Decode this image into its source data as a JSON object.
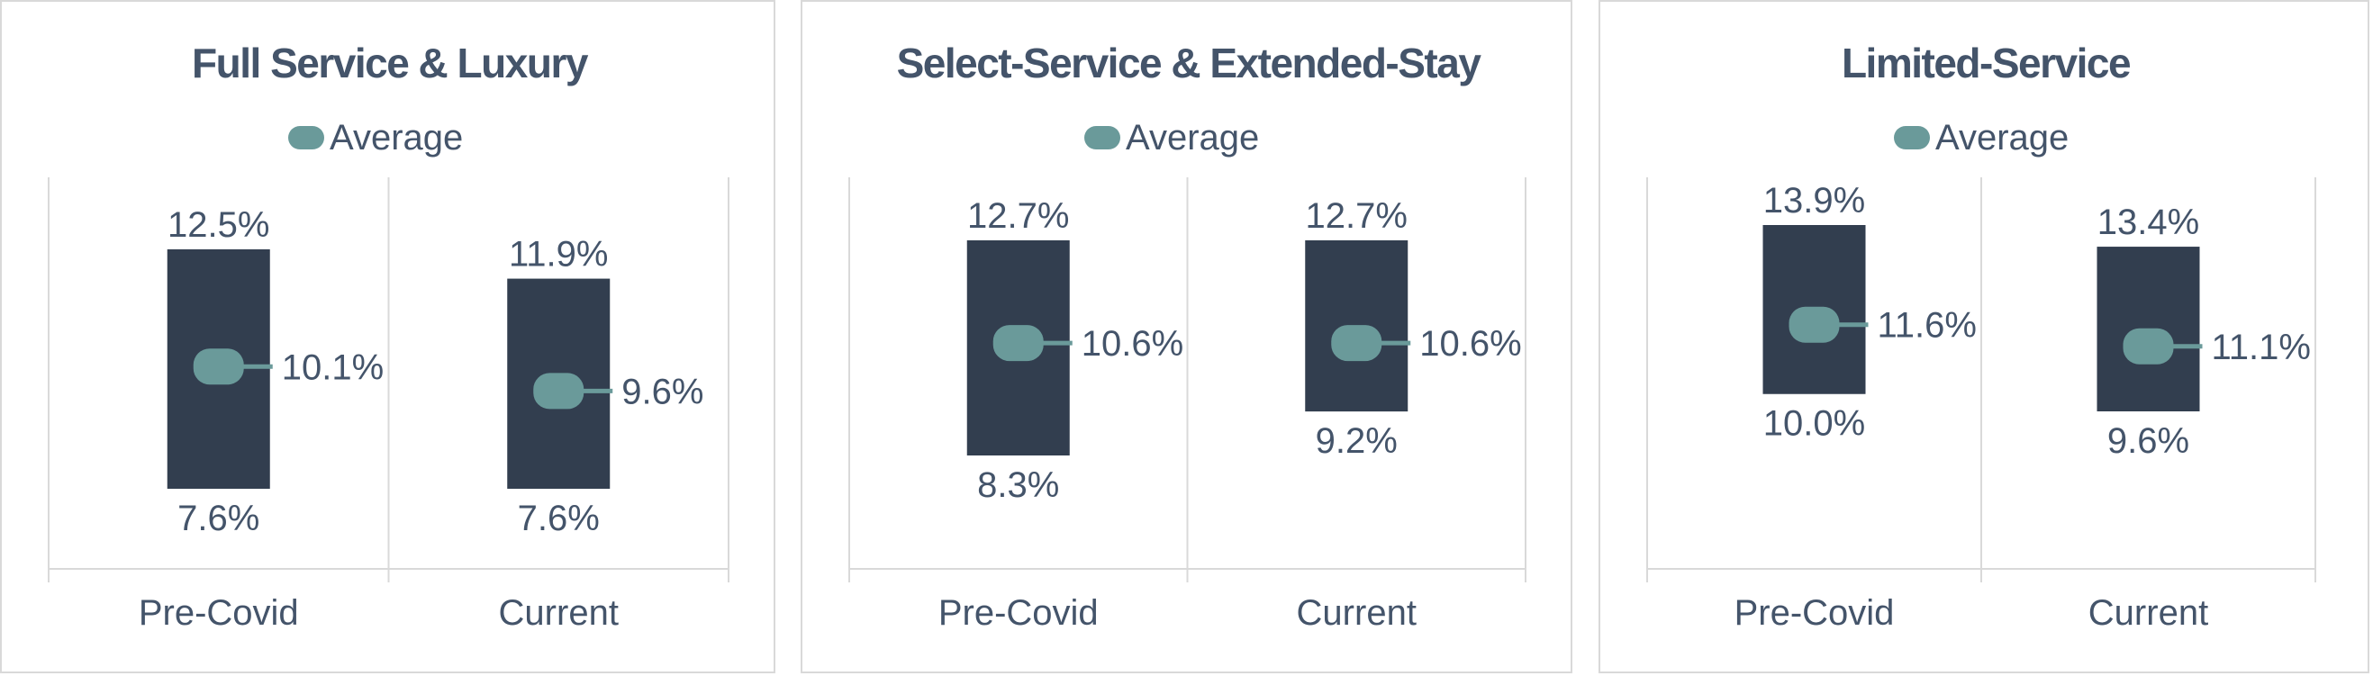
{
  "colors": {
    "range_bar": "#323e4f",
    "average_marker": "#6a9a9a",
    "text": "#44546a",
    "gridline": "#d9d9d9",
    "border": "#d9d9d9"
  },
  "chart_data": [
    {
      "type": "bar",
      "title": "Full Service & Luxury",
      "legend": "Average",
      "legend_position": "top",
      "categories": [
        "Pre-Covid",
        "Current"
      ],
      "high": [
        12.5,
        11.9
      ],
      "low": [
        7.6,
        7.6
      ],
      "average": [
        10.1,
        9.6
      ],
      "high_labels": [
        "12.5%",
        "11.9%"
      ],
      "low_labels": [
        "7.6%",
        "7.6%"
      ],
      "average_labels": [
        "10.1%",
        "9.6%"
      ]
    },
    {
      "type": "bar",
      "title": "Select-Service & Extended-Stay",
      "legend": "Average",
      "legend_position": "top",
      "categories": [
        "Pre-Covid",
        "Current"
      ],
      "high": [
        12.7,
        12.7
      ],
      "low": [
        8.3,
        9.2
      ],
      "average": [
        10.6,
        10.6
      ],
      "high_labels": [
        "12.7%",
        "12.7%"
      ],
      "low_labels": [
        "8.3%",
        "9.2%"
      ],
      "average_labels": [
        "10.6%",
        "10.6%"
      ]
    },
    {
      "type": "bar",
      "title": "Limited-Service",
      "legend": "Average",
      "legend_position": "top",
      "categories": [
        "Pre-Covid",
        "Current"
      ],
      "high": [
        13.9,
        13.4
      ],
      "low": [
        10.0,
        9.6
      ],
      "average": [
        11.6,
        11.1
      ],
      "high_labels": [
        "13.9%",
        "13.4%"
      ],
      "low_labels": [
        "10.0%",
        "9.6%"
      ],
      "average_labels": [
        "11.6%",
        "11.1%"
      ]
    }
  ]
}
